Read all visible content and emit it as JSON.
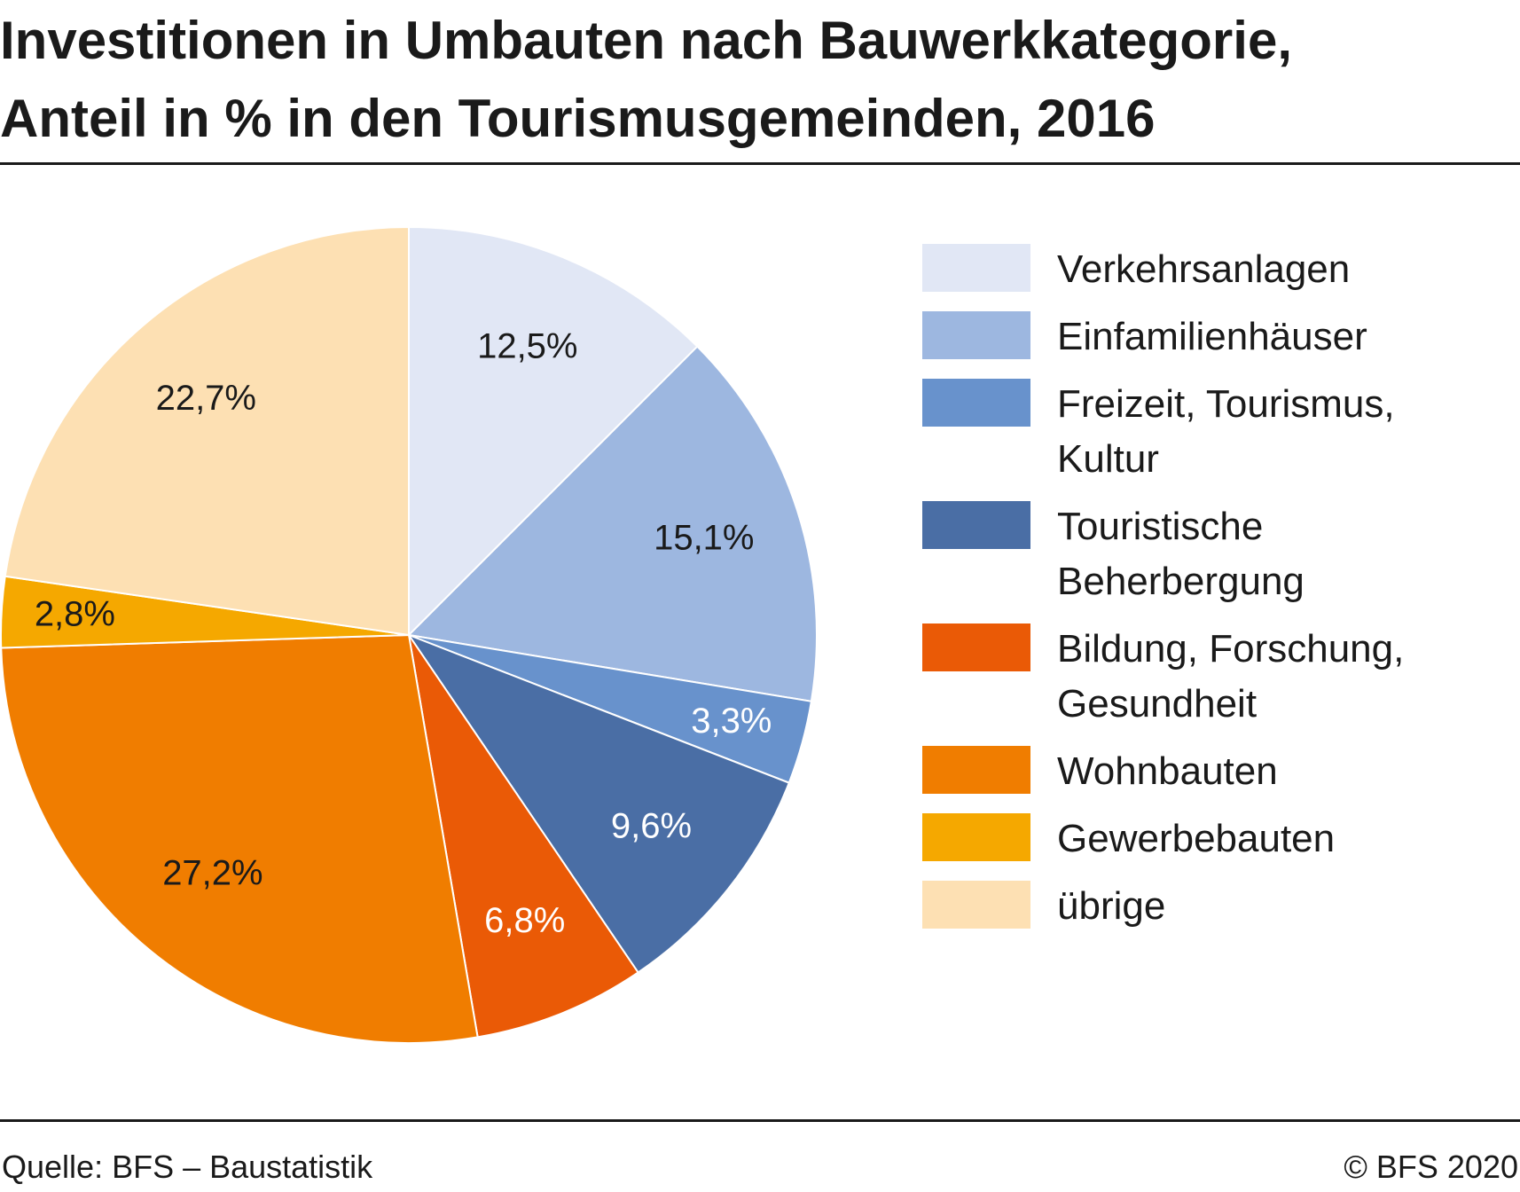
{
  "title": {
    "line1": "Investitionen in Umbauten nach Bauwerkkategorie,",
    "line2": "Anteil in % in den Tourismusgemeinden, 2016"
  },
  "chart_data": {
    "type": "pie",
    "title": "Investitionen in Umbauten nach Bauwerkkategorie, Anteil in % in den Tourismusgemeinden, 2016",
    "start": "12 o'clock",
    "direction": "clockwise",
    "legend_position": "right",
    "slices": [
      {
        "name": "Verkehrsanlagen",
        "value": 12.5,
        "label": "12,5%",
        "color": "#e1e7f5",
        "label_color": "#1a1a1a"
      },
      {
        "name": "Einfamilienhäuser",
        "value": 15.1,
        "label": "15,1%",
        "color": "#9db7e0",
        "label_color": "#1a1a1a"
      },
      {
        "name": "Freizeit, Tourismus, Kultur",
        "value": 3.3,
        "label": "3,3%",
        "color": "#6892cc",
        "label_color": "#ffffff"
      },
      {
        "name": "Touristische Beherbergung",
        "value": 9.6,
        "label": "9,6%",
        "color": "#4a6ea5",
        "label_color": "#ffffff"
      },
      {
        "name": "Bildung, Forschung, Gesundheit",
        "value": 6.8,
        "label": "6,8%",
        "color": "#ea5a06",
        "label_color": "#ffffff"
      },
      {
        "name": "Wohnbauten",
        "value": 27.2,
        "label": "27,2%",
        "color": "#f07d00",
        "label_color": "#1a1a1a"
      },
      {
        "name": "Gewerbebauten",
        "value": 2.8,
        "label": "2,8%",
        "color": "#f5a800",
        "label_color": "#1a1a1a"
      },
      {
        "name": "übrige",
        "value": 22.7,
        "label": "22,7%",
        "color": "#fde0b3",
        "label_color": "#1a1a1a"
      }
    ]
  },
  "legend": {
    "items": [
      {
        "lines": [
          "Verkehrsanlagen"
        ],
        "color": "#e1e7f5"
      },
      {
        "lines": [
          "Einfamilienhäuser"
        ],
        "color": "#9db7e0"
      },
      {
        "lines": [
          "Freizeit, Tourismus,",
          "Kultur"
        ],
        "color": "#6892cc"
      },
      {
        "lines": [
          "Touristische",
          "Beherbergung"
        ],
        "color": "#4a6ea5"
      },
      {
        "lines": [
          "Bildung, Forschung,",
          "Gesundheit"
        ],
        "color": "#ea5a06"
      },
      {
        "lines": [
          "Wohnbauten"
        ],
        "color": "#f07d00"
      },
      {
        "lines": [
          "Gewerbebauten"
        ],
        "color": "#f5a800"
      },
      {
        "lines": [
          "übrige"
        ],
        "color": "#fde0b3"
      }
    ]
  },
  "footer": {
    "source": "Quelle: BFS – Baustatistik",
    "copyright": "© BFS 2020"
  }
}
